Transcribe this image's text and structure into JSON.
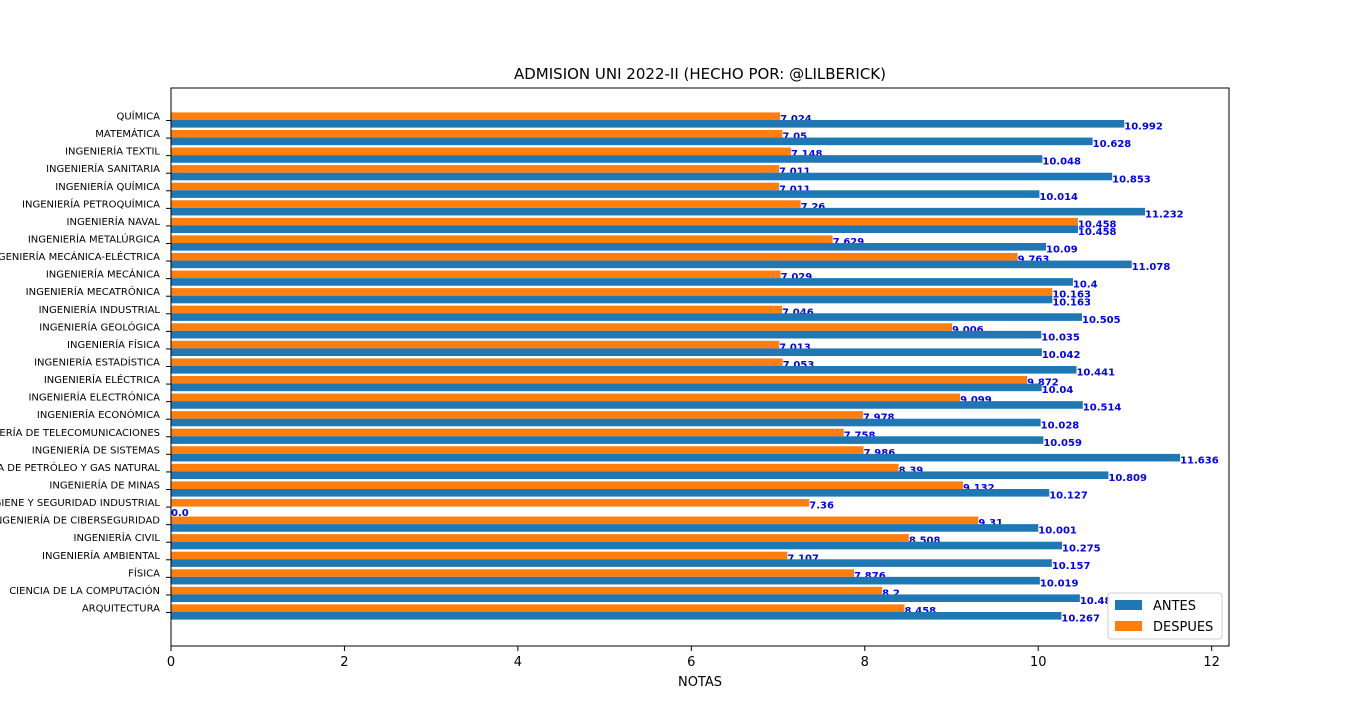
{
  "chart_data": {
    "type": "bar",
    "orientation": "horizontal",
    "title": "ADMISION UNI 2022-II (HECHO POR: @LILBERICK)",
    "xlabel": "NOTAS",
    "ylabel": "",
    "xlim": [
      0,
      12.2
    ],
    "xticks": [
      0,
      2,
      4,
      6,
      8,
      10,
      12
    ],
    "legend_position": "lower-right",
    "categories": [
      "QUÍMICA",
      "MATEMÁTICA",
      "INGENIERÍA TEXTIL",
      "INGENIERÍA SANITARIA",
      "INGENIERÍA QUÍMICA",
      "INGENIERÍA PETROQUÍMICA",
      "INGENIERÍA NAVAL",
      "INGENIERÍA METALÚRGICA",
      "INGENIERÍA MECÁNICA-ELÉCTRICA",
      "INGENIERÍA MECÁNICA",
      "INGENIERÍA MECATRÓNICA",
      "INGENIERÍA INDUSTRIAL",
      "INGENIERÍA GEOLÓGICA",
      "INGENIERÍA FÍSICA",
      "INGENIERÍA ESTADÍSTICA",
      "INGENIERÍA ELÉCTRICA",
      "INGENIERÍA ELECTRÓNICA",
      "INGENIERÍA ECONÓMICA",
      "INGENIERÍA DE TELECOMUNICACIONES",
      "INGENIERÍA DE SISTEMAS",
      "INGENIERÍA DE PETRÓLEO Y GAS NATURAL",
      "INGENIERÍA DE MINAS",
      "INGENIERÍA DE HIGIENE Y SEGURIDAD INDUSTRIAL",
      "INGENIERÍA DE CIBERSEGURIDAD",
      "INGENIERÍA CIVIL",
      "INGENIERÍA AMBIENTAL",
      "FÍSICA",
      "CIENCIA DE LA COMPUTACIÓN",
      "ARQUITECTURA"
    ],
    "series": [
      {
        "name": "ANTES",
        "color": "#1f77b4",
        "values": [
          10.992,
          10.628,
          10.048,
          10.853,
          10.014,
          11.232,
          10.458,
          10.09,
          11.078,
          10.4,
          10.163,
          10.505,
          10.035,
          10.042,
          10.441,
          10.04,
          10.514,
          10.028,
          10.059,
          11.636,
          10.809,
          10.127,
          0.0,
          10.001,
          10.275,
          10.157,
          10.019,
          10.48,
          10.267
        ]
      },
      {
        "name": "DESPUES",
        "color": "#ff7f0e",
        "values": [
          7.024,
          7.05,
          7.148,
          7.011,
          7.011,
          7.26,
          10.458,
          7.629,
          9.763,
          7.029,
          10.163,
          7.046,
          9.006,
          7.013,
          7.053,
          9.872,
          9.099,
          7.978,
          7.758,
          7.986,
          8.39,
          9.132,
          7.36,
          9.31,
          8.508,
          7.107,
          7.876,
          8.2,
          8.458
        ]
      }
    ]
  }
}
